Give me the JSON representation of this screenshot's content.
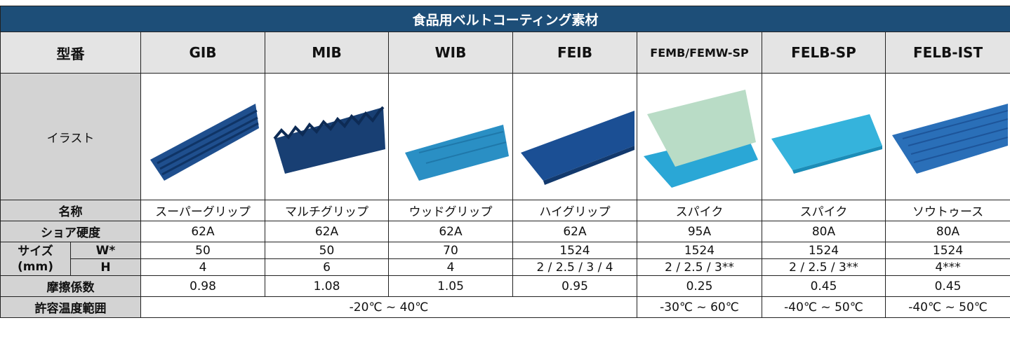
{
  "title": "食品用ベルトコーティング素材",
  "header": [
    "型番",
    "GIB",
    "MIB",
    "WIB",
    "FEIB",
    "FEMB/FEMW-SP",
    "FELB-SP",
    "FELB-IST"
  ],
  "illustration_label": "イラスト",
  "rows": [
    [
      "名称",
      "スーパーグリップ",
      "マルチグリップ",
      "ウッドグリップ",
      "ハイグリップ",
      "スパイク",
      "スパイク",
      "ソウトゥース"
    ],
    [
      "ショア硬度",
      "62A",
      "62A",
      "62A",
      "62A",
      "95A",
      "80A",
      "80A"
    ]
  ],
  "size": {
    "label": "サイズ",
    "unit": "(mm)",
    "rows": [
      [
        "W*",
        "50",
        "50",
        "70",
        "1524",
        "1524",
        "1524",
        "1524"
      ],
      [
        "H",
        "4",
        "6",
        "4",
        "2 / 2.5 / 3 / 4",
        "2 / 2.5 / 3**",
        "2 / 2.5 / 3**",
        "4***"
      ]
    ]
  },
  "friction": [
    "摩擦係数",
    "0.98",
    "1.08",
    "1.05",
    "0.95",
    "0.25",
    "0.45",
    "0.45"
  ],
  "temperature": {
    "label": "許容温度範囲",
    "values": [
      "-20℃ ~ 40℃",
      "-30℃ ~ 60℃",
      "-40℃ ~ 50℃",
      "-40℃ ~ 50℃"
    ]
  }
}
